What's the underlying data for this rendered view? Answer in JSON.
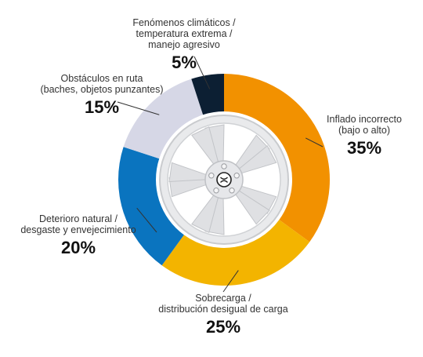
{
  "chart_data": {
    "type": "pie",
    "variant": "donut",
    "title": "",
    "slices": [
      {
        "label": "Inflado incorrecto\n(bajo o alto)",
        "value": 35,
        "display": "35%",
        "color": "#f29100"
      },
      {
        "label": "Sobrecarga /\ndistribución desigual de carga",
        "value": 25,
        "display": "25%",
        "color": "#f3b400"
      },
      {
        "label": "Deterioro natural /\ndesgaste y envejecimiento",
        "value": 20,
        "display": "20%",
        "color": "#0a74bf"
      },
      {
        "label": "Obstáculos en ruta\n(baches, objetos punzantes)",
        "value": 15,
        "display": "15%",
        "color": "#d6d7e6"
      },
      {
        "label": "Fenómenos climáticos /\ntemperatura extrema /\nmanejo agresivo",
        "value": 5,
        "display": "5%",
        "color": "#0c1f33"
      }
    ],
    "center_icon": "wheel-rim-icon"
  }
}
